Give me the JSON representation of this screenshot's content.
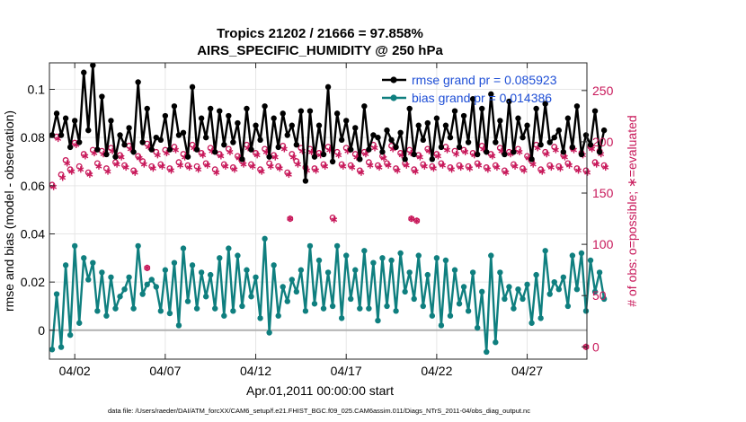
{
  "chart_data": {
    "type": "line",
    "title": "Tropics 21202 / 21666 = 97.858%",
    "subtitle": "AIRS_SPECIFIC_HUMIDITY @ 250 hPa",
    "xlabel": "Apr.01,2011 00:00:00 start",
    "ylabel": "rmse and bias (model - observation)",
    "ylabel_right": "# of obs: o=possible; ∗=evaluated",
    "footnote": "data file: /Users/raeder/DAI/ATM_forcXX/CAM6_setup/f.e21.FHIST_BGC.f09_025.CAM6assim.011/Diags_NTrS_2011-04/obs_diag_output.nc",
    "xlim": [
      0.6,
      30.3
    ],
    "ylim": [
      -0.012,
      0.111
    ],
    "ylim_right": [
      -12,
      277
    ],
    "x_ticks": [
      2,
      7,
      12,
      17,
      22,
      27
    ],
    "x_tick_labels": [
      "04/02",
      "04/07",
      "04/12",
      "04/17",
      "04/22",
      "04/27"
    ],
    "y_ticks": [
      0,
      0.02,
      0.04,
      0.06,
      0.08,
      0.1
    ],
    "y_tick_labels": [
      "0",
      "0.02",
      "0.04",
      "0.06",
      "0.08",
      "0.1"
    ],
    "y_ticks_right": [
      0,
      50,
      100,
      150,
      200,
      250
    ],
    "y_tick_labels_right": [
      "0",
      "50",
      "100",
      "150",
      "200",
      "250"
    ],
    "grid": true,
    "legend_placement": "top-right",
    "colors": {
      "rmse": "#000000",
      "bias": "#0f7f7f",
      "obs": "#c8185a",
      "legend_text": "#1f4fd6",
      "zero_line": "#b0b0b0"
    },
    "x_start": 0.75,
    "x_step": 0.25,
    "series": [
      {
        "name": "rmse grand pr = 0.085923",
        "axis": "left",
        "marker": "filled-circle",
        "values": [
          0.081,
          0.09,
          0.081,
          0.088,
          0.076,
          0.087,
          0.078,
          0.107,
          0.083,
          0.11,
          0.075,
          0.097,
          0.073,
          0.087,
          0.072,
          0.081,
          0.077,
          0.084,
          0.074,
          0.103,
          0.078,
          0.092,
          0.075,
          0.08,
          0.079,
          0.089,
          0.075,
          0.093,
          0.081,
          0.082,
          0.072,
          0.101,
          0.075,
          0.088,
          0.08,
          0.092,
          0.074,
          0.091,
          0.077,
          0.089,
          0.078,
          0.086,
          0.071,
          0.092,
          0.075,
          0.085,
          0.079,
          0.093,
          0.072,
          0.088,
          0.076,
          0.09,
          0.081,
          0.085,
          0.077,
          0.091,
          0.062,
          0.091,
          0.072,
          0.085,
          0.073,
          0.101,
          0.07,
          0.09,
          0.079,
          0.087,
          0.075,
          0.084,
          0.071,
          0.093,
          0.075,
          0.081,
          0.08,
          0.074,
          0.083,
          0.079,
          0.076,
          0.082,
          0.071,
          0.092,
          0.073,
          0.085,
          0.079,
          0.086,
          0.071,
          0.088,
          0.076,
          0.085,
          0.08,
          0.091,
          0.076,
          0.089,
          0.078,
          0.096,
          0.073,
          0.092,
          0.074,
          0.098,
          0.078,
          0.087,
          0.073,
          0.095,
          0.074,
          0.088,
          0.08,
          0.085,
          0.071,
          0.092,
          0.077,
          0.094,
          0.078,
          0.08,
          0.083,
          0.074,
          0.088,
          0.076,
          0.093,
          0.073,
          0.081,
          0.077,
          0.091,
          0.074,
          0.083
        ],
        "visible_points": [
          [
            1.2,
            0.079
          ],
          [
            1.5,
            0.086
          ],
          [
            2.0,
            0.087
          ],
          [
            2.2,
            0.09
          ]
        ],
        "shape": "jagged"
      },
      {
        "name": "bias grand pr = 0.014386",
        "axis": "left",
        "marker": "filled-circle",
        "values": [
          -0.008,
          0.015,
          -0.007,
          0.027,
          -0.002,
          0.035,
          0.003,
          0.03,
          0.021,
          0.028,
          0.008,
          0.024,
          0.006,
          0.022,
          0.009,
          0.014,
          0.017,
          0.022,
          0.009,
          0.035,
          0.015,
          0.019,
          0.021,
          0.018,
          0.008,
          0.025,
          0.007,
          0.028,
          0.002,
          0.034,
          0.012,
          0.027,
          0.009,
          0.024,
          0.014,
          0.023,
          0.009,
          0.03,
          0.006,
          0.034,
          0.008,
          0.031,
          0.01,
          0.025,
          0.014,
          0.022,
          0.005,
          0.038,
          -0.001,
          0.027,
          0.006,
          0.018,
          0.012,
          0.021,
          0.016,
          0.025,
          0.008,
          0.035,
          0.011,
          0.029,
          0.009,
          0.024,
          0.01,
          0.035,
          0.005,
          0.031,
          0.013,
          0.025,
          0.009,
          0.033,
          0.009,
          0.028,
          0.004,
          0.03,
          0.01,
          0.029,
          0.008,
          0.032,
          0.016,
          0.024,
          0.013,
          0.031,
          0.01,
          0.023,
          0.006,
          0.03,
          0.002,
          0.029,
          0.006,
          0.025,
          0.011,
          0.018,
          0.008,
          0.024,
          0.001,
          0.016,
          -0.009,
          0.031,
          -0.005,
          0.024,
          0.013,
          0.018,
          0.009,
          0.017,
          0.013,
          0.019,
          0.003,
          0.023,
          0.005,
          0.033,
          0.015,
          0.02,
          0.017,
          0.022,
          0.01,
          0.031,
          0.017,
          0.032,
          0.008,
          0.029,
          0.016,
          0.024,
          0.013
        ],
        "shape": "jagged"
      },
      {
        "name": "obs possible",
        "axis": "right",
        "marker": "open-circle",
        "values": [
          158,
          205,
          168,
          182,
          173,
          199,
          176,
          188,
          170,
          192,
          179,
          191,
          174,
          194,
          180,
          187,
          177,
          196,
          172,
          186,
          181,
          198,
          176,
          190,
          178,
          192,
          174,
          195,
          180,
          188,
          177,
          197,
          176,
          189,
          179,
          194,
          173,
          188,
          178,
          193,
          175,
          186,
          181,
          197,
          178,
          189,
          173,
          193,
          179,
          187,
          176,
          196,
          170,
          188,
          181,
          194,
          175,
          193,
          174,
          189,
          178,
          195,
          126,
          190,
          178,
          194,
          177,
          188,
          172,
          190,
          180,
          197,
          177,
          186,
          179,
          196,
          174,
          189,
          179,
          192,
          173,
          187,
          178,
          193,
          176,
          188,
          179,
          195,
          175,
          191,
          177,
          192,
          176,
          189,
          179,
          196,
          175,
          188,
          177,
          194,
          172,
          190,
          178,
          193,
          174,
          186,
          181,
          197,
          173,
          190,
          177,
          195,
          176,
          187,
          179,
          194,
          174,
          189,
          172,
          195,
          180,
          191,
          177
        ]
      },
      {
        "name": "obs evaluated",
        "axis": "right",
        "marker": "asterisk",
        "values": [
          156,
          203,
          165,
          179,
          171,
          197,
          173,
          186,
          168,
          189,
          176,
          188,
          171,
          191,
          178,
          185,
          175,
          193,
          170,
          184,
          178,
          195,
          174,
          187,
          176,
          189,
          172,
          192,
          177,
          185,
          175,
          194,
          173,
          187,
          177,
          191,
          170,
          186,
          176,
          190,
          173,
          184,
          178,
          194,
          176,
          187,
          171,
          190,
          176,
          185,
          174,
          193,
          168,
          185,
          178,
          191,
          172,
          190,
          172,
          187,
          176,
          192,
          124,
          187,
          176,
          191,
          175,
          185,
          170,
          188,
          177,
          194,
          175,
          184,
          177,
          193,
          172,
          187,
          177,
          189,
          171,
          185,
          176,
          191,
          174,
          186,
          177,
          192,
          173,
          188,
          175,
          190,
          174,
          187,
          177,
          193,
          173,
          186,
          175,
          191,
          170,
          188,
          176,
          190,
          172,
          184,
          178,
          194,
          171,
          188,
          175,
          192,
          174,
          185,
          177,
          192,
          172,
          187,
          170,
          193,
          178,
          188,
          175
        ]
      }
    ],
    "annotations": {
      "outlier_points_right_axis": [
        [
          6.0,
          77
        ],
        [
          13.9,
          125
        ],
        [
          20.6,
          125
        ],
        [
          20.9,
          123
        ],
        [
          30.25,
          0
        ]
      ]
    }
  }
}
